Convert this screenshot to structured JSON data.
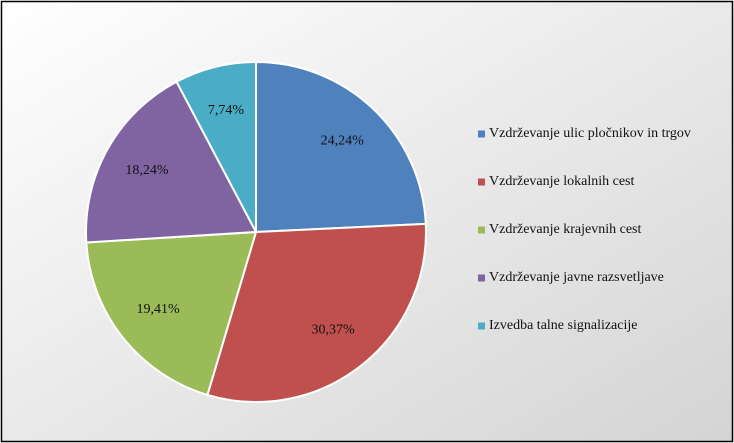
{
  "chart_data": {
    "type": "pie",
    "categories": [
      "Vzdrževanje ulic pločnikov in trgov",
      "Vzdrževanje lokalnih cest",
      "Vzdrževanje krajevnih cest",
      "Vzdrževanje javne razsvetljave",
      "Izvedba talne signalizacije"
    ],
    "values": [
      24.24,
      30.37,
      19.41,
      18.24,
      7.74
    ],
    "value_labels": [
      "24,24%",
      "30,37%",
      "19,41%",
      "18,24%",
      "7,74%"
    ],
    "colors": [
      "#4f81bd",
      "#c0504d",
      "#9bbb59",
      "#8064a2",
      "#4bacc6"
    ],
    "legend": "right"
  }
}
